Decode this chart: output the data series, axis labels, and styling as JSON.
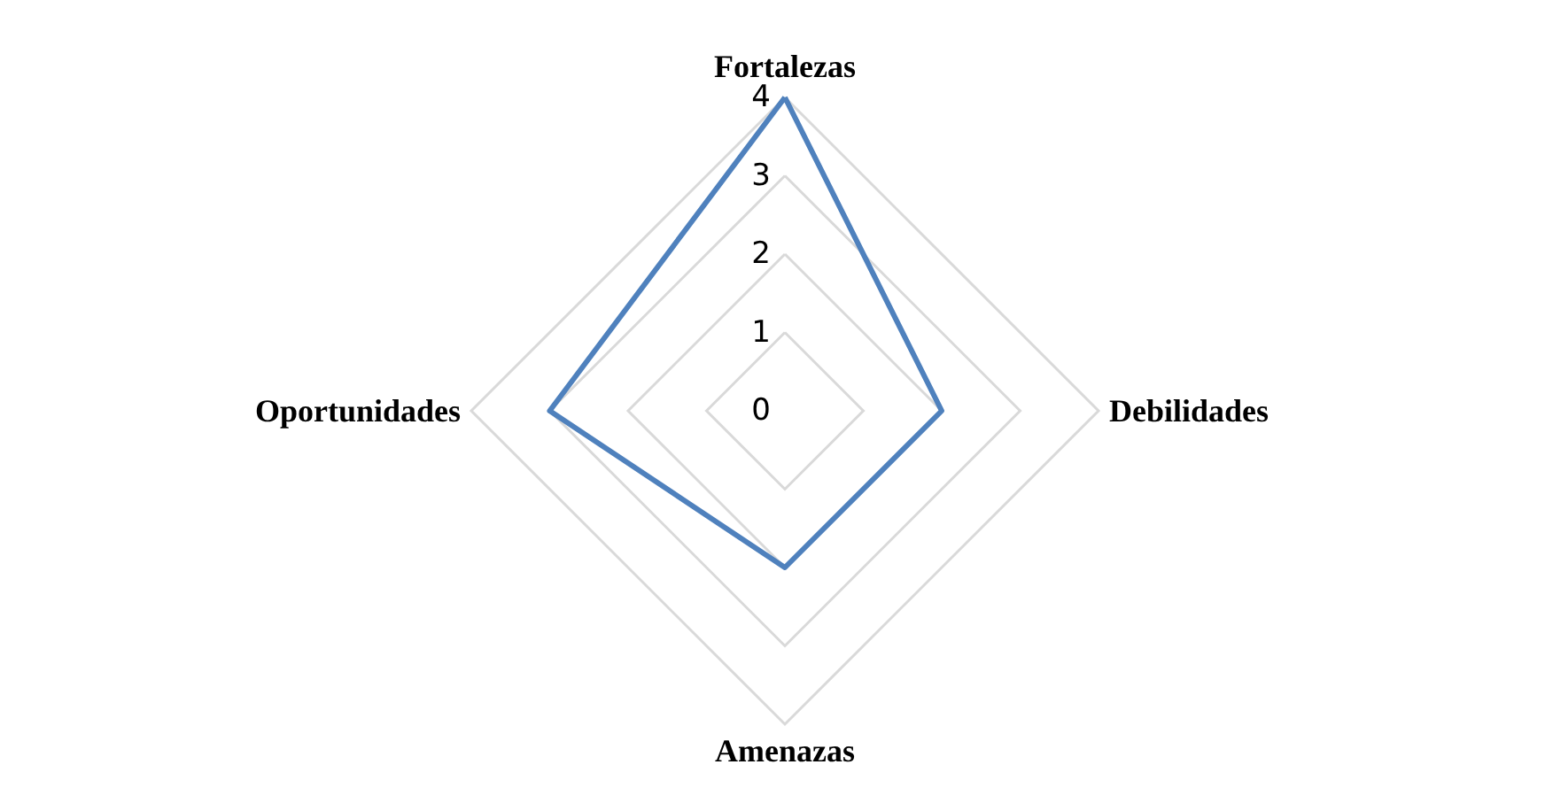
{
  "chart_data": {
    "type": "radar",
    "categories": [
      "Fortalezas",
      "Debilidades",
      "Amenazas",
      "Oportunidades"
    ],
    "series": [
      {
        "color": "#4f81bd",
        "values": [
          4,
          2,
          2,
          3
        ]
      }
    ],
    "ylim": [
      0,
      4
    ],
    "yticks": [
      0,
      1,
      2,
      3,
      4
    ],
    "grid": true,
    "marker": "none",
    "line_style": "solid"
  }
}
